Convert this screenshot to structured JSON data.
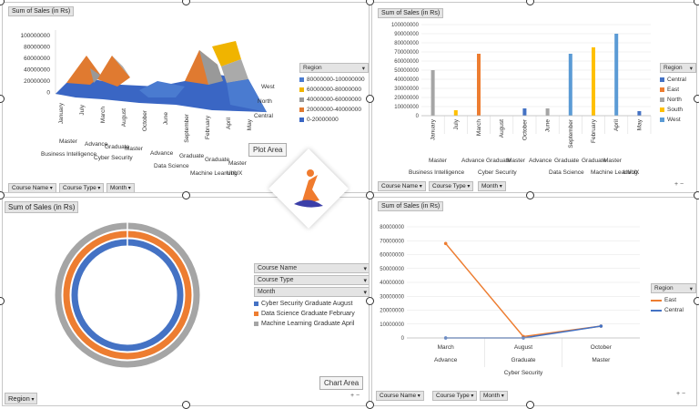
{
  "topleft": {
    "field": "Sum of Sales (in Rs)",
    "y_ticks": [
      "100000000",
      "80000000",
      "60000000",
      "40000000",
      "20000000",
      "0"
    ],
    "months": [
      "January",
      "July",
      "March",
      "August",
      "October",
      "June",
      "September",
      "February",
      "April",
      "May"
    ],
    "types": [
      "Master",
      "Advance",
      "Graduate",
      "Master",
      "Advance",
      "Graduate",
      "Graduate",
      "Master"
    ],
    "courses": [
      "Business Intelligence",
      "Cyber Security",
      "Data Science",
      "Machine Learning",
      "UI/UX"
    ],
    "depth_axis": [
      "West",
      "North",
      "Central"
    ],
    "legend_title": "Region",
    "legend": [
      {
        "label": "80000000-100000000",
        "color": "#4a7bd0"
      },
      {
        "label": "60000000-80000000",
        "color": "#f0b400"
      },
      {
        "label": "40000000-60000000",
        "color": "#999999"
      },
      {
        "label": "20000000-40000000",
        "color": "#e07a30"
      },
      {
        "label": "0-20000000",
        "color": "#3a66c4"
      }
    ],
    "tag": "Plot Area",
    "filters": [
      "Course Name",
      "Course Type",
      "Month"
    ]
  },
  "topright": {
    "field": "Sum of Sales (in Rs)",
    "legend_title": "Region",
    "legend": [
      {
        "label": "Central",
        "color": "#4472c4"
      },
      {
        "label": "East",
        "color": "#ed7d31"
      },
      {
        "label": "North",
        "color": "#a5a5a5"
      },
      {
        "label": "South",
        "color": "#ffc000"
      },
      {
        "label": "West",
        "color": "#5b9bd5"
      }
    ],
    "filters": [
      "Course Name",
      "Course Type",
      "Month"
    ],
    "types": [
      "Master",
      "Advance",
      "Graduate",
      "Master",
      "Advance",
      "Graduate",
      "Graduate",
      "Master"
    ],
    "courses": [
      "Business Intelligence",
      "Cyber Security",
      "Data Science",
      "Machine Learning",
      "UI/UX"
    ]
  },
  "bottomleft": {
    "field": "Sum of Sales (in Rs)",
    "filters": [
      "Course Name",
      "Course Type",
      "Month"
    ],
    "legend": [
      {
        "label": "Cyber Security Graduate August",
        "color": "#4472c4"
      },
      {
        "label": "Data Science Graduate February",
        "color": "#ed7d31"
      },
      {
        "label": "Machine Learning Graduate April",
        "color": "#a5a5a5"
      }
    ],
    "tag": "Chart Area",
    "region_filter": "Region"
  },
  "bottomright": {
    "field": "Sum of Sales (in Rs)",
    "legend_title": "Region",
    "legend": [
      {
        "label": "East",
        "color": "#ed7d31"
      },
      {
        "label": "Central",
        "color": "#4472c4"
      }
    ],
    "filters": [
      "Course Name",
      "Course Type",
      "Month"
    ],
    "course": "Cyber Security"
  },
  "chart_data": [
    {
      "type": "bar",
      "title": "",
      "ylabel": "Sum of Sales (in Rs)",
      "ylim": [
        0,
        100000000
      ],
      "y_ticks": [
        "100000000",
        "90000000",
        "80000000",
        "70000000",
        "60000000",
        "50000000",
        "40000000",
        "30000000",
        "20000000",
        "10000000",
        "0"
      ],
      "categories": [
        "January",
        "July",
        "March",
        "August",
        "October",
        "June",
        "September",
        "February",
        "April",
        "May"
      ],
      "series": [
        {
          "name": "Central",
          "values": [
            0,
            0,
            0,
            0,
            8000000,
            0,
            0,
            0,
            0,
            5000000
          ]
        },
        {
          "name": "East",
          "values": [
            0,
            0,
            68000000,
            0,
            0,
            0,
            0,
            0,
            0,
            0
          ]
        },
        {
          "name": "North",
          "values": [
            50000000,
            0,
            0,
            0,
            0,
            8000000,
            0,
            0,
            0,
            0
          ]
        },
        {
          "name": "South",
          "values": [
            0,
            6000000,
            0,
            0,
            0,
            0,
            0,
            75000000,
            0,
            0
          ]
        },
        {
          "name": "West",
          "values": [
            0,
            0,
            0,
            0,
            0,
            0,
            68000000,
            0,
            90000000,
            0
          ]
        }
      ]
    },
    {
      "type": "line",
      "title": "",
      "ylabel": "Sum of Sales (in Rs)",
      "ylim": [
        0,
        80000000
      ],
      "y_ticks": [
        "80000000",
        "70000000",
        "60000000",
        "50000000",
        "40000000",
        "30000000",
        "20000000",
        "10000000",
        "0"
      ],
      "categories": [
        "March",
        "August",
        "October"
      ],
      "subcategories": [
        "Advance",
        "Graduate",
        "Master"
      ],
      "series": [
        {
          "name": "East",
          "values": [
            68000000,
            1000000,
            8500000
          ]
        },
        {
          "name": "Central",
          "values": [
            0,
            0,
            8500000
          ]
        }
      ]
    },
    {
      "type": "pie",
      "title": "",
      "categories": [
        "Cyber Security Graduate August",
        "Data Science Graduate February",
        "Machine Learning Graduate April"
      ],
      "values": [
        1,
        1,
        1
      ]
    }
  ]
}
